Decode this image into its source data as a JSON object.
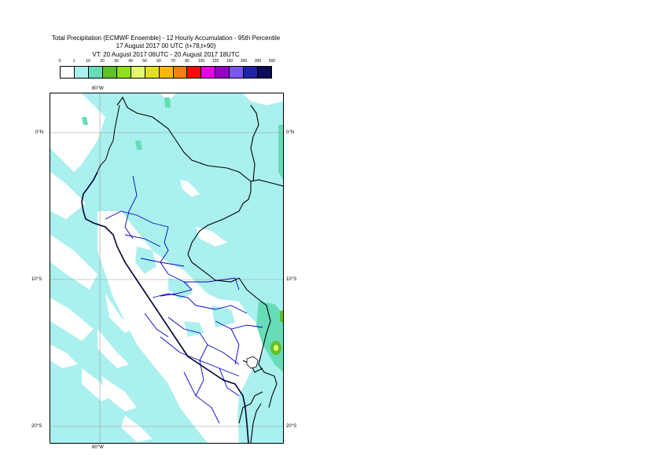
{
  "title": {
    "line1": "Total Precipitation (ECMWF Ensemble) - 12 Hourly Accumulation - 95th Percentile",
    "line2": "17 August 2017 00 UTC (t+78,t+90)",
    "line3": "VT: 20 August 2017 06UTC - 20 August 2017 18UTC"
  },
  "legend": {
    "labels": [
      "0",
      "1",
      "10",
      "20",
      "30",
      "40",
      "50",
      "60",
      "70",
      "80",
      "100",
      "125",
      "150",
      "200",
      "300",
      "500"
    ],
    "colors": [
      "#ffffff",
      "#aaf0ef",
      "#66ddb8",
      "#60c12a",
      "#8fe014",
      "#e4f86c",
      "#e0e020",
      "#f8b800",
      "#f87e0f",
      "#f80a0a",
      "#e800e8",
      "#9500c8",
      "#7a55f0",
      "#1e24a8",
      "#0c0c5a"
    ]
  },
  "axes": {
    "lon_top": "80°W",
    "lon_bottom": "80°W",
    "lat_0_left": "0°N",
    "lat_0_right": "0°N",
    "lat_10_left": "10°S",
    "lat_10_right": "10°S",
    "lat_20_left": "20°S",
    "lat_20_right": "20°S"
  },
  "colors": {
    "precip_light": "#aaf0ef",
    "precip_medium": "#66ddb8",
    "precip_green": "#60c12a",
    "precip_yellow": "#e4f86c",
    "border_country": "#000000",
    "border_region": "#0000cc",
    "graticule": "#999999"
  }
}
